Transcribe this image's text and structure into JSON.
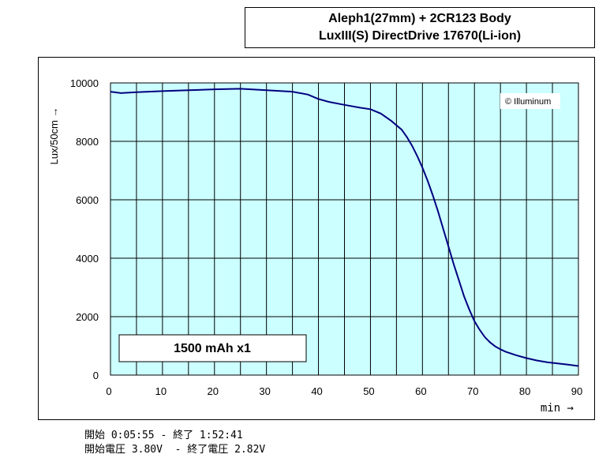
{
  "title": {
    "line1": "Aleph1(27mm) + 2CR123 Body",
    "line2": "LuxIII(S) DirectDrive 17670(Li-ion)"
  },
  "footer": {
    "line1": "開始 0:05:55 - 終了 1:52:41",
    "line2": "開始電圧 3.80V  - 終了電圧 2.82V"
  },
  "chart_data": {
    "type": "line",
    "ylabel": "Lux/50cm →",
    "xlabel": "min →",
    "xlim": [
      0,
      90
    ],
    "ylim": [
      0,
      10000
    ],
    "xticks": [
      0,
      10,
      20,
      30,
      40,
      50,
      60,
      70,
      80,
      90
    ],
    "yticks": [
      0,
      2000,
      4000,
      6000,
      8000,
      10000
    ],
    "grid": true,
    "watermark": "© Illuminum",
    "annotation": "1500 mAh x1",
    "colors": {
      "plot_bg": "#ccffff",
      "line": "#000080",
      "grid": "#000000"
    },
    "series": [
      {
        "x": [
          0,
          2,
          5,
          10,
          15,
          20,
          25,
          30,
          35,
          38,
          40,
          42,
          45,
          48,
          50,
          52,
          54,
          56,
          57,
          58,
          59,
          60,
          61,
          62,
          63,
          64,
          65,
          66,
          67,
          68,
          69,
          70,
          71,
          72,
          73,
          74,
          75,
          76,
          78,
          80,
          82,
          84,
          86,
          88,
          90
        ],
        "y": [
          9700,
          9650,
          9680,
          9720,
          9750,
          9780,
          9800,
          9750,
          9700,
          9600,
          9450,
          9350,
          9250,
          9150,
          9100,
          8950,
          8700,
          8400,
          8150,
          7850,
          7500,
          7100,
          6650,
          6150,
          5600,
          5000,
          4400,
          3800,
          3250,
          2700,
          2250,
          1850,
          1550,
          1300,
          1120,
          980,
          880,
          800,
          680,
          580,
          500,
          440,
          400,
          360,
          310
        ]
      }
    ]
  }
}
